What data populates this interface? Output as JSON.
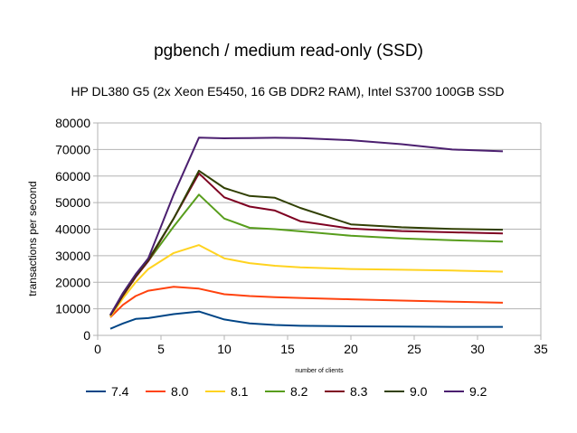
{
  "chart_data": {
    "type": "line",
    "title": "pgbench / medium read-only (SSD)",
    "subtitle": "HP DL380 G5 (2x Xeon E5450, 16 GB DDR2 RAM), Intel S3700 100GB SSD",
    "xlabel": "number of clients",
    "ylabel": "transactions per second",
    "xlim": [
      0,
      35
    ],
    "ylim": [
      0,
      80000
    ],
    "x_ticks": [
      0,
      5,
      10,
      15,
      20,
      25,
      30,
      35
    ],
    "y_ticks": [
      0,
      10000,
      20000,
      30000,
      40000,
      50000,
      60000,
      70000,
      80000
    ],
    "grid": "horizontal",
    "legend_position": "bottom",
    "x": [
      1,
      2,
      3,
      4,
      6,
      8,
      10,
      12,
      14,
      16,
      20,
      24,
      28,
      32
    ],
    "series": [
      {
        "name": "7.4",
        "color": "#004586",
        "values": [
          2500,
          4500,
          6200,
          6500,
          8000,
          9000,
          6000,
          4500,
          3900,
          3600,
          3400,
          3300,
          3200,
          3200
        ]
      },
      {
        "name": "8.0",
        "color": "#ff420e",
        "values": [
          6800,
          11500,
          14800,
          16800,
          18300,
          17600,
          15500,
          14800,
          14400,
          14100,
          13600,
          13100,
          12700,
          12300
        ]
      },
      {
        "name": "8.1",
        "color": "#ffd320",
        "values": [
          7000,
          14000,
          20000,
          25000,
          31000,
          34000,
          29000,
          27200,
          26200,
          25600,
          25000,
          24700,
          24400,
          24000
        ]
      },
      {
        "name": "8.2",
        "color": "#579d1c",
        "values": [
          7500,
          15000,
          22000,
          28000,
          41000,
          53000,
          44000,
          40500,
          40000,
          39200,
          37500,
          36500,
          35800,
          35300
        ]
      },
      {
        "name": "8.3",
        "color": "#7e0021",
        "values": [
          7500,
          15000,
          22000,
          28000,
          44000,
          61000,
          52000,
          48500,
          47000,
          43000,
          40200,
          39300,
          38800,
          38400
        ]
      },
      {
        "name": "9.0",
        "color": "#314004",
        "values": [
          7600,
          15500,
          22500,
          28500,
          44000,
          62000,
          55500,
          52500,
          51800,
          48000,
          41800,
          40700,
          40100,
          39800
        ]
      },
      {
        "name": "9.2",
        "color": "#4b1f6f",
        "values": [
          7700,
          16000,
          23000,
          29000,
          53000,
          74500,
          74200,
          74300,
          74400,
          74300,
          73500,
          72000,
          70000,
          69300
        ]
      }
    ]
  }
}
